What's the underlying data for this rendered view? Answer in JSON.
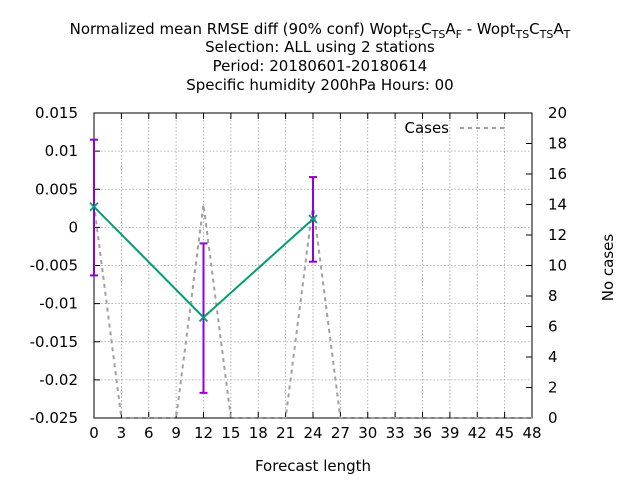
{
  "chart_data": {
    "type": "line",
    "title_lines": [
      "Normalized mean RMSE diff (90% conf) Wopt",
      "Selection: ALL using     2 stations",
      "Period: 20180601-20180614",
      "Specific humidity 200hPa   Hours:  00"
    ],
    "title_left_model": {
      "base": "Wopt",
      "parts": [
        [
          "F",
          "S"
        ],
        [
          "C",
          ""
        ],
        [
          "T",
          "S"
        ],
        [
          "A",
          ""
        ],
        [
          "F",
          ""
        ]
      ]
    },
    "title_first_line_text": "Normalized mean RMSE diff (90% conf) ",
    "title_exp1": {
      "letters": [
        "Wopt",
        "F",
        "S",
        "C",
        "T",
        "S",
        "A",
        "F"
      ],
      "sub": [
        false,
        true,
        true,
        false,
        true,
        true,
        false,
        true
      ]
    },
    "title_exp2": {
      "letters": [
        "Wopt",
        "T",
        "S",
        "C",
        "T",
        "S",
        "A",
        "T"
      ],
      "sub": [
        false,
        true,
        true,
        false,
        true,
        true,
        false,
        true
      ]
    },
    "title_separator": " - ",
    "xlabel": "Forecast length",
    "ylabel": "",
    "y2label": "No cases",
    "xlim": [
      0,
      48
    ],
    "ylim": [
      -0.025,
      0.015
    ],
    "y2lim": [
      0,
      20
    ],
    "xticks": [
      0,
      3,
      6,
      9,
      12,
      15,
      18,
      21,
      24,
      27,
      30,
      33,
      36,
      39,
      42,
      45,
      48
    ],
    "yticks": [
      -0.025,
      -0.02,
      -0.015,
      -0.01,
      -0.005,
      0,
      0.005,
      0.01,
      0.015
    ],
    "ytick_labels": [
      "-0.025",
      "-0.02",
      "-0.015",
      "-0.01",
      "-0.005",
      "0",
      "0.005",
      "0.01",
      "0.015"
    ],
    "y2ticks": [
      0,
      2,
      4,
      6,
      8,
      10,
      12,
      14,
      16,
      18,
      20
    ],
    "grid": true,
    "legend": {
      "placement": "top-right",
      "label": "Cases"
    },
    "series": [
      {
        "name": "RMSE diff",
        "color": "#009e73",
        "x": [
          0,
          12,
          24
        ],
        "y": [
          0.0027,
          -0.0118,
          0.0011
        ],
        "err_low": [
          -0.0063,
          -0.0217,
          -0.0045
        ],
        "err_high": [
          0.0115,
          -0.0021,
          0.0066
        ],
        "err_color": "#9400d3"
      },
      {
        "name": "Cases",
        "color": "#a0a0a0",
        "axis": "y2",
        "dashed": true,
        "x": [
          0,
          3,
          9,
          12,
          15,
          21,
          24,
          27,
          48
        ],
        "y": [
          14,
          0,
          0,
          14,
          0,
          0,
          14,
          0,
          0
        ]
      }
    ]
  }
}
